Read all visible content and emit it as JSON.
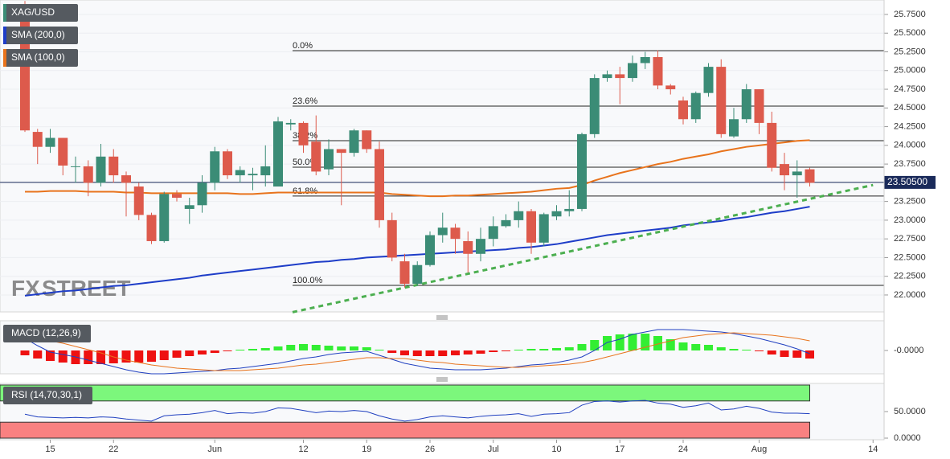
{
  "chart_data": [
    {
      "type": "candlestick",
      "title": "XAG/USD",
      "up_color": "#3b8c76",
      "down_color": "#dd5a4c",
      "categories": [
        null,
        null,
        "15",
        null,
        null,
        null,
        null,
        "22",
        null,
        null,
        null,
        null,
        null,
        null,
        null,
        "Jun",
        null,
        null,
        null,
        null,
        null,
        null,
        "12",
        null,
        null,
        null,
        null,
        "19",
        null,
        null,
        null,
        null,
        "26",
        null,
        null,
        null,
        null,
        "Jul",
        null,
        null,
        null,
        null,
        "10",
        null,
        null,
        null,
        null,
        "17",
        null,
        null,
        null,
        null,
        "24",
        null,
        null,
        null,
        null,
        null,
        "Aug",
        null,
        null,
        null,
        null,
        null,
        null,
        null,
        null,
        "14"
      ],
      "open": [
        25.85,
        24.18,
        23.98,
        24.1,
        23.72,
        23.72,
        23.5,
        23.85,
        23.6,
        23.45,
        23.07,
        22.72,
        23.35,
        23.15,
        23.2,
        23.5,
        23.92,
        23.6,
        23.6,
        23.6,
        23.45,
        24.28,
        24.3,
        24.05,
        23.68,
        23.95,
        23.9,
        24.2,
        23.95,
        23.0,
        22.45,
        22.15,
        22.4,
        22.8,
        22.9,
        22.72,
        22.55,
        22.75,
        22.92,
        23.0,
        23.12,
        22.7,
        23.05,
        23.12,
        23.15,
        24.15,
        24.9,
        24.95,
        24.9,
        25.1,
        25.18,
        24.8,
        24.6,
        24.35,
        24.7,
        25.05,
        24.12,
        24.35,
        24.75,
        24.3,
        23.75,
        23.6,
        23.68,
        null,
        null,
        null,
        null,
        null
      ],
      "high": [
        25.93,
        24.22,
        24.22,
        24.1,
        23.85,
        23.8,
        24.02,
        23.95,
        23.65,
        23.5,
        23.1,
        23.38,
        23.4,
        23.3,
        23.6,
        23.98,
        23.95,
        23.72,
        23.7,
        24.0,
        24.38,
        24.35,
        24.32,
        24.4,
        24.08,
        23.95,
        24.22,
        24.2,
        24.05,
        23.1,
        22.55,
        22.45,
        22.85,
        23.1,
        22.95,
        22.85,
        22.9,
        23.05,
        23.08,
        23.25,
        23.15,
        23.1,
        23.2,
        23.4,
        24.17,
        24.95,
        25.0,
        25.05,
        25.2,
        25.25,
        25.27,
        24.82,
        24.65,
        24.72,
        25.1,
        25.15,
        24.5,
        24.82,
        24.75,
        24.45,
        23.9,
        23.8,
        23.7,
        null,
        null,
        null,
        null,
        null
      ],
      "low": [
        24.18,
        23.75,
        23.9,
        23.6,
        23.5,
        23.32,
        23.45,
        23.5,
        23.05,
        23.0,
        22.68,
        22.7,
        23.25,
        22.95,
        23.1,
        23.4,
        23.55,
        23.5,
        23.4,
        23.45,
        23.45,
        24.2,
        23.9,
        23.6,
        23.6,
        23.2,
        23.85,
        23.9,
        22.9,
        22.45,
        22.1,
        22.12,
        22.38,
        22.7,
        22.55,
        22.3,
        22.45,
        22.65,
        22.9,
        22.9,
        22.55,
        22.65,
        23.0,
        23.05,
        23.12,
        24.1,
        24.85,
        24.55,
        24.85,
        25.02,
        24.75,
        24.68,
        24.28,
        24.3,
        24.65,
        24.1,
        24.1,
        24.3,
        24.15,
        23.65,
        23.4,
        23.3,
        23.45,
        null,
        null,
        null,
        null,
        null
      ],
      "close": [
        24.2,
        23.98,
        24.1,
        23.73,
        23.72,
        23.5,
        23.85,
        23.6,
        23.5,
        23.07,
        22.72,
        23.35,
        23.3,
        23.2,
        23.5,
        23.92,
        23.6,
        23.67,
        23.62,
        23.72,
        24.32,
        24.3,
        24.0,
        23.65,
        23.95,
        23.9,
        24.2,
        23.95,
        23.0,
        22.5,
        22.15,
        22.4,
        22.8,
        22.9,
        22.75,
        22.55,
        22.75,
        22.92,
        23.0,
        23.12,
        22.7,
        23.08,
        23.12,
        23.15,
        24.15,
        24.9,
        24.95,
        24.9,
        25.1,
        25.18,
        24.8,
        24.75,
        24.35,
        24.7,
        25.05,
        24.15,
        24.35,
        24.75,
        24.3,
        23.7,
        23.6,
        23.65,
        23.5,
        null,
        null,
        null,
        null,
        null
      ],
      "series": [
        {
          "name": "SMA (200,0)",
          "color": "#1e3dc8",
          "values": [
            21.99,
            22.01,
            22.03,
            22.05,
            22.06,
            22.08,
            22.1,
            22.12,
            22.13,
            22.15,
            22.17,
            22.19,
            22.21,
            22.23,
            22.26,
            22.28,
            22.3,
            22.32,
            22.34,
            22.36,
            22.38,
            22.4,
            22.42,
            22.44,
            22.45,
            22.47,
            22.48,
            22.5,
            22.51,
            22.52,
            22.53,
            22.54,
            22.55,
            22.56,
            22.57,
            22.58,
            22.59,
            22.6,
            22.61,
            22.63,
            22.64,
            22.66,
            22.68,
            22.71,
            22.74,
            22.77,
            22.8,
            22.82,
            22.84,
            22.86,
            22.88,
            22.9,
            22.93,
            22.95,
            22.97,
            22.99,
            23.02,
            23.04,
            23.07,
            23.1,
            23.12,
            23.15,
            23.18,
            null,
            null,
            null,
            null,
            null
          ]
        },
        {
          "name": "SMA (100,0)",
          "color": "#e8731c",
          "values": [
            23.38,
            23.38,
            23.39,
            23.39,
            23.39,
            23.38,
            23.38,
            23.38,
            23.37,
            23.37,
            23.36,
            23.36,
            23.36,
            23.36,
            23.36,
            23.36,
            23.36,
            23.35,
            23.35,
            23.36,
            23.37,
            23.37,
            23.37,
            23.37,
            23.37,
            23.37,
            23.37,
            23.37,
            23.37,
            23.35,
            23.34,
            23.33,
            23.32,
            23.32,
            23.33,
            23.33,
            23.34,
            23.35,
            23.36,
            23.37,
            23.38,
            23.4,
            23.42,
            23.43,
            23.47,
            23.53,
            23.58,
            23.63,
            23.67,
            23.71,
            23.75,
            23.78,
            23.82,
            23.85,
            23.88,
            23.92,
            23.95,
            23.98,
            24.0,
            24.02,
            24.04,
            24.06,
            24.07,
            null,
            null,
            null,
            null,
            null
          ]
        }
      ],
      "fib_levels": [
        {
          "label": "0.0%",
          "value": 25.266
        },
        {
          "label": "23.6%",
          "value": 24.525
        },
        {
          "label": "38.2%",
          "value": 24.063
        },
        {
          "label": "50.0%",
          "value": 23.708
        },
        {
          "label": "61.8%",
          "value": 23.322
        },
        {
          "label": "100.0%",
          "value": 22.129
        }
      ],
      "trendline": {
        "color": "#4caf50",
        "values": [
          21.77,
          23.47
        ]
      },
      "last_price": {
        "value": 23.505,
        "label": "23.50500"
      },
      "watermark": [
        "FX",
        "STREET"
      ],
      "ylim": [
        21.774,
        25.943
      ],
      "yticks": [
        {
          "value": 22.0,
          "label": "22.0000"
        },
        {
          "value": 22.25,
          "label": "22.2500"
        },
        {
          "value": 22.5,
          "label": "22.5000"
        },
        {
          "value": 22.75,
          "label": "22.7500"
        },
        {
          "value": 23.0,
          "label": "23.0000"
        },
        {
          "value": 23.25,
          "label": "23.2500"
        },
        {
          "value": 23.5,
          "label": "23.5000"
        },
        {
          "value": 23.75,
          "label": "23.7500"
        },
        {
          "value": 24.0,
          "label": "24.0000"
        },
        {
          "value": 24.25,
          "label": "24.2500"
        },
        {
          "value": 24.5,
          "label": "24.5000"
        },
        {
          "value": 24.75,
          "label": "24.7500"
        },
        {
          "value": 25.0,
          "label": "25.0000"
        },
        {
          "value": 25.25,
          "label": "25.2500"
        },
        {
          "value": 25.5,
          "label": "25.5000"
        },
        {
          "value": 25.75,
          "label": "25.7500"
        }
      ],
      "grid": true
    },
    {
      "type": "macd",
      "title": "MACD (12,26,9)",
      "histogram": [
        -0.06,
        -0.1,
        -0.13,
        -0.15,
        -0.17,
        -0.17,
        -0.17,
        -0.16,
        -0.15,
        -0.15,
        -0.14,
        -0.12,
        -0.09,
        -0.07,
        -0.05,
        -0.03,
        -0.01,
        0.01,
        0.02,
        0.03,
        0.05,
        0.07,
        0.08,
        0.07,
        0.06,
        0.05,
        0.05,
        0.04,
        0.01,
        -0.03,
        -0.06,
        -0.07,
        -0.07,
        -0.07,
        -0.06,
        -0.05,
        -0.04,
        -0.02,
        -0.01,
        0.01,
        0.02,
        0.02,
        0.03,
        0.04,
        0.08,
        0.13,
        0.18,
        0.2,
        0.21,
        0.21,
        0.18,
        0.14,
        0.1,
        0.08,
        0.07,
        0.04,
        0.02,
        0.01,
        -0.01,
        -0.05,
        -0.08,
        -0.09,
        -0.1
      ],
      "up_color": "#33ee33",
      "down_color": "#ee1111",
      "series": [
        {
          "color": "#2040c0",
          "values": [
            0.15,
            0.06,
            -0.02,
            -0.05,
            -0.08,
            -0.12,
            -0.16,
            -0.2,
            -0.24,
            -0.27,
            -0.29,
            -0.29,
            -0.28,
            -0.27,
            -0.26,
            -0.25,
            -0.23,
            -0.22,
            -0.2,
            -0.18,
            -0.16,
            -0.13,
            -0.1,
            -0.08,
            -0.05,
            -0.03,
            -0.02,
            -0.01,
            -0.06,
            -0.11,
            -0.16,
            -0.19,
            -0.22,
            -0.23,
            -0.24,
            -0.24,
            -0.24,
            -0.23,
            -0.22,
            -0.2,
            -0.18,
            -0.17,
            -0.15,
            -0.12,
            -0.08,
            0,
            0.1,
            0.14,
            0.2,
            0.23,
            0.26,
            0.26,
            0.26,
            0.25,
            0.24,
            0.23,
            0.21,
            0.18,
            0.15,
            0.11,
            0.07,
            0.02,
            -0.04
          ]
        },
        {
          "color": "#e8731c",
          "values": [
            0.2,
            0.16,
            0.12,
            0.09,
            0.05,
            0.01,
            -0.03,
            -0.08,
            -0.12,
            -0.15,
            -0.18,
            -0.2,
            -0.22,
            -0.23,
            -0.24,
            -0.25,
            -0.25,
            -0.25,
            -0.24,
            -0.23,
            -0.22,
            -0.2,
            -0.18,
            -0.17,
            -0.15,
            -0.13,
            -0.11,
            -0.09,
            -0.09,
            -0.1,
            -0.1,
            -0.12,
            -0.14,
            -0.15,
            -0.17,
            -0.18,
            -0.19,
            -0.2,
            -0.21,
            -0.21,
            -0.2,
            -0.19,
            -0.18,
            -0.17,
            -0.15,
            -0.12,
            -0.08,
            -0.04,
            0,
            0.04,
            0.08,
            0.12,
            0.16,
            0.18,
            0.2,
            0.21,
            0.22,
            0.21,
            0.2,
            0.19,
            0.17,
            0.15,
            0.12
          ]
        }
      ],
      "ylim": [
        -0.29,
        0.37
      ],
      "yticks": [
        {
          "value": 0,
          "label": "-0.0000"
        }
      ]
    },
    {
      "type": "rsi",
      "title": "RSI (14,70,30,1)",
      "series": [
        {
          "color": "#2040c0",
          "values": [
            45,
            40,
            39,
            38,
            39,
            38,
            40,
            39,
            36,
            34,
            32,
            42,
            44,
            45,
            48,
            52,
            46,
            48,
            47,
            50,
            57,
            56,
            52,
            48,
            51,
            50,
            52,
            50,
            42,
            36,
            32,
            35,
            40,
            42,
            40,
            38,
            41,
            43,
            44,
            46,
            41,
            45,
            46,
            48,
            62,
            69,
            70,
            68,
            70,
            71,
            66,
            64,
            58,
            61,
            66,
            53,
            55,
            60,
            56,
            49,
            47,
            47,
            46
          ]
        }
      ],
      "bands": [
        {
          "from": 70,
          "to": 100,
          "color": "#7cf77c"
        },
        {
          "from": 30,
          "to": 0,
          "color": "#f98181"
        }
      ],
      "ylim": [
        -3,
        103
      ],
      "yticks": [
        {
          "value": 50,
          "label": "50.0000"
        },
        {
          "value": 0,
          "label": "0.0000"
        }
      ]
    }
  ]
}
